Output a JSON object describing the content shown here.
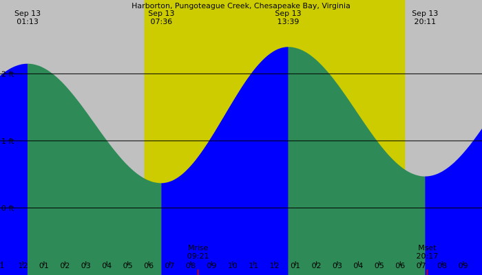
{
  "chart_data": {
    "type": "area",
    "title": "Harborton, Pungoteague Creek, Chesapeake Bay, Virginia",
    "unit": "ft",
    "y_ticks": [
      {
        "value": 2,
        "label": "2 ft"
      },
      {
        "value": 1,
        "label": "1 ft"
      },
      {
        "value": 0,
        "label": "0 ft"
      }
    ],
    "ylim": [
      -1.0,
      3.1
    ],
    "x_range_hours": [
      -0.1,
      22.9
    ],
    "x_ticks": [
      {
        "hour": 0,
        "label": "1"
      },
      {
        "hour": 1,
        "label": "12"
      },
      {
        "hour": 2,
        "label": "01"
      },
      {
        "hour": 3,
        "label": "02"
      },
      {
        "hour": 4,
        "label": "03"
      },
      {
        "hour": 5,
        "label": "04"
      },
      {
        "hour": 6,
        "label": "05"
      },
      {
        "hour": 7,
        "label": "06"
      },
      {
        "hour": 8,
        "label": "07"
      },
      {
        "hour": 9,
        "label": "08"
      },
      {
        "hour": 10,
        "label": "09"
      },
      {
        "hour": 11,
        "label": "10"
      },
      {
        "hour": 12,
        "label": "11"
      },
      {
        "hour": 13,
        "label": "12"
      },
      {
        "hour": 14,
        "label": "01"
      },
      {
        "hour": 15,
        "label": "02"
      },
      {
        "hour": 16,
        "label": "03"
      },
      {
        "hour": 17,
        "label": "04"
      },
      {
        "hour": 18,
        "label": "05"
      },
      {
        "hour": 19,
        "label": "06"
      },
      {
        "hour": 20,
        "label": "07"
      },
      {
        "hour": 21,
        "label": "08"
      },
      {
        "hour": 22,
        "label": "09"
      }
    ],
    "tide_extremes": [
      {
        "date": "Sep 13",
        "time": "01:13",
        "type": "high",
        "height_ft": 2.15
      },
      {
        "date": "Sep 13",
        "time": "07:36",
        "type": "low",
        "height_ft": 0.37
      },
      {
        "date": "Sep 13",
        "time": "13:39",
        "type": "high",
        "height_ft": 2.4
      },
      {
        "date": "Sep 13",
        "time": "20:11",
        "type": "low",
        "height_ft": 0.47
      }
    ],
    "daylight": {
      "start": "06:47",
      "end": "19:14"
    },
    "moon_events": [
      {
        "label": "Mrise",
        "time": "09:21"
      },
      {
        "label": "Mset",
        "time": "20:17"
      }
    ],
    "colors": {
      "night": "#c0c0c0",
      "day": "#cccc00",
      "rising": "#0000ff",
      "falling": "#2e8b57",
      "moon_marker": "#cc0000"
    },
    "grid": true
  }
}
